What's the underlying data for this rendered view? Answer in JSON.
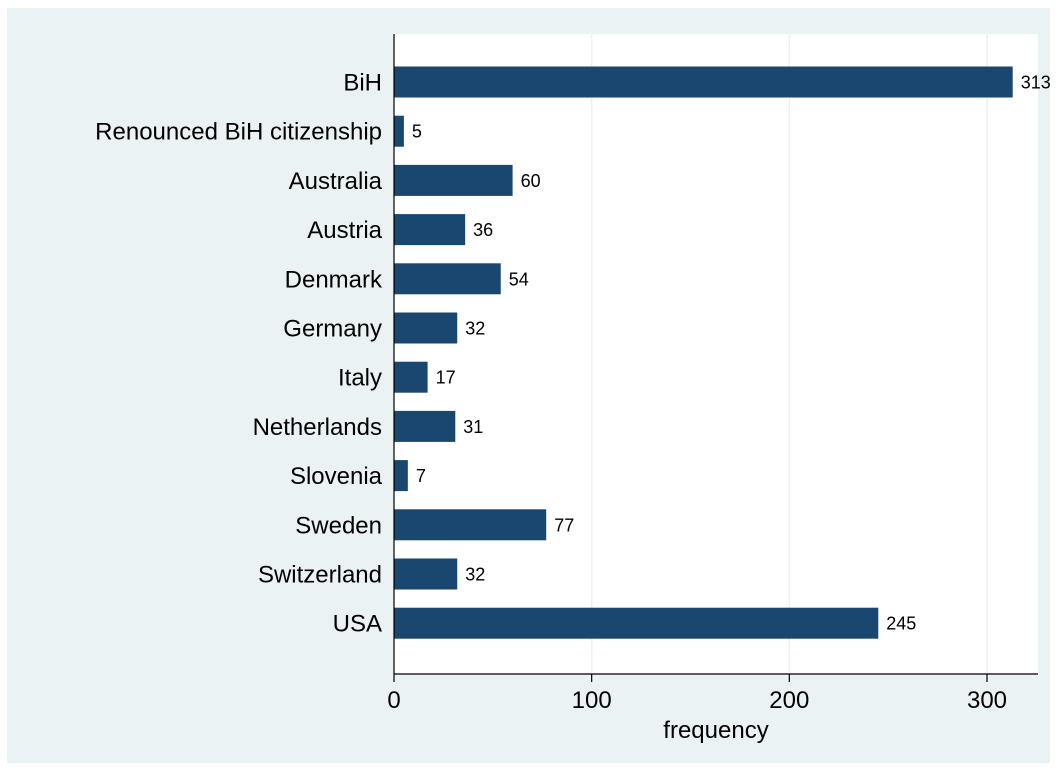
{
  "chart_data": {
    "type": "bar",
    "orientation": "horizontal",
    "categories": [
      "BiH",
      "Renounced BiH citizenship",
      "Australia",
      "Austria",
      "Denmark",
      "Germany",
      "Italy",
      "Netherlands",
      "Slovenia",
      "Sweden",
      "Switzerland",
      "USA"
    ],
    "values": [
      313,
      5,
      60,
      36,
      54,
      32,
      17,
      31,
      7,
      77,
      32,
      245
    ],
    "xlabel": "frequency",
    "ylabel": "",
    "xlim": [
      0,
      327
    ],
    "xticks": [
      0,
      100,
      200,
      300
    ],
    "grid": true,
    "data_labels": true,
    "legend": "none"
  },
  "colors": {
    "outer_background": "#eaf2f3",
    "plot_background": "#ffffff",
    "bar": "#1a476f",
    "gridline": "#eaf2f3",
    "axis": "#000000",
    "text": "#000000"
  }
}
